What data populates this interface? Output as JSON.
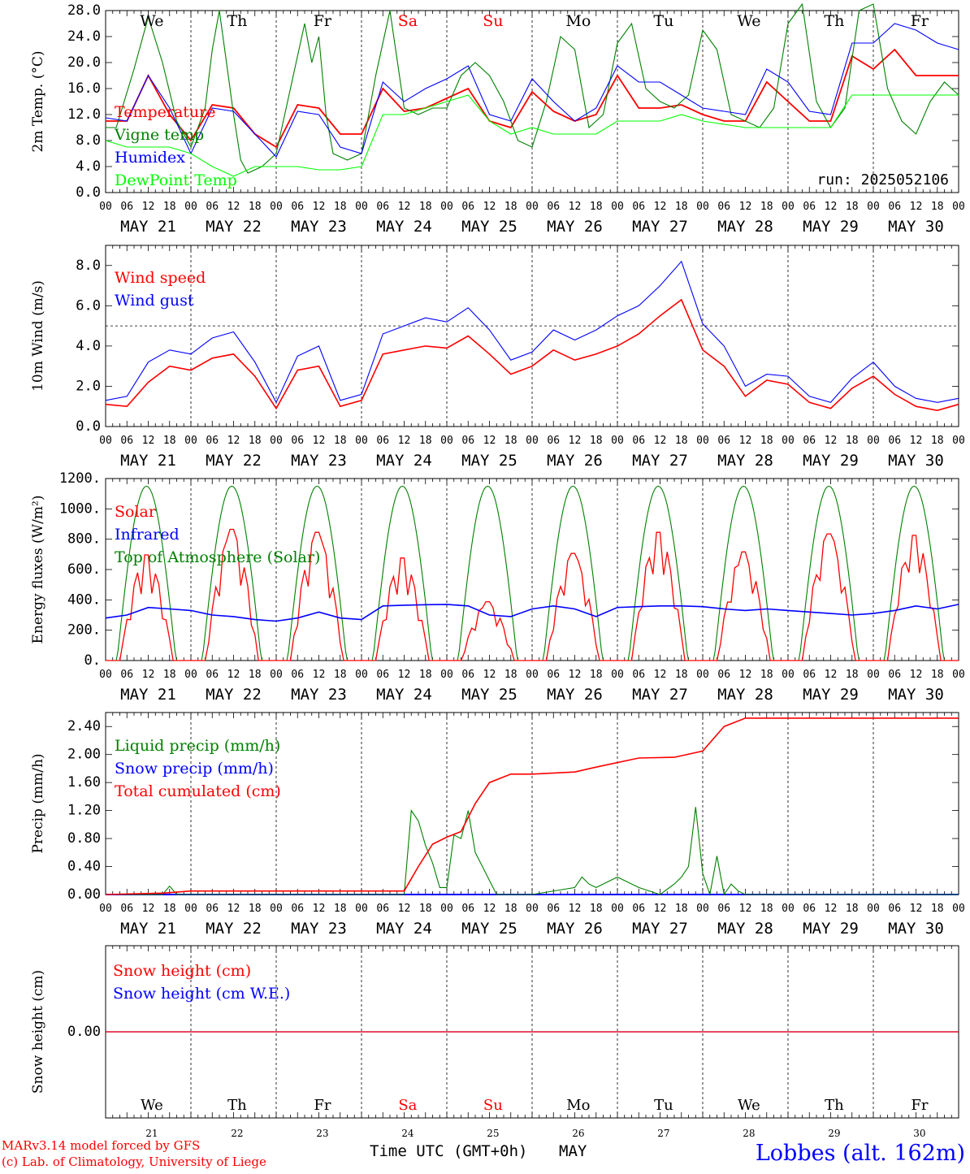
{
  "meteogram": {
    "day_labels": [
      "We",
      "Th",
      "Fr",
      "Sa",
      "Su",
      "Mo",
      "Tu",
      "We",
      "Th",
      "Fr"
    ],
    "weekend_days": [
      "Sa",
      "Su"
    ],
    "date_labels": [
      "MAY 21",
      "MAY 22",
      "MAY 23",
      "MAY 24",
      "MAY 25",
      "MAY 26",
      "MAY 27",
      "MAY 28",
      "MAY 29",
      "MAY 30"
    ],
    "hour_ticks": [
      "00",
      "06",
      "12",
      "18"
    ],
    "bottom_dates": [
      "21",
      "22",
      "23",
      "24",
      "25",
      "26",
      "27",
      "28",
      "29",
      "30"
    ],
    "xlabel": "Time UTC (GMT+0h)",
    "month": "MAY",
    "credit_line1": "MARv3.14 model forced by GFS",
    "credit_line2": "(c) Lab. of Climatology, University of Liege",
    "station": "Lobbes (alt. 162m)",
    "run": "run: 2025052106",
    "colors": {
      "red": "#ff0000",
      "green": "#008000",
      "blue": "#0000ff",
      "lime": "#00ff00",
      "station": "#0000ff"
    }
  },
  "chart_data": [
    {
      "type": "line",
      "ylabel": "2m Temp. (°C)",
      "ylim": [
        0,
        28
      ],
      "yticks": [
        "0.0",
        "4.0",
        "8.0",
        "12.0",
        "16.0",
        "20.0",
        "24.0",
        "28.0"
      ],
      "x_unit": "hours since 2025-05-21 00 UTC",
      "series": [
        {
          "name": "Temperature",
          "color": "red",
          "x": [
            0,
            6,
            12,
            18,
            24,
            30,
            36,
            42,
            48,
            54,
            60,
            66,
            72,
            78,
            84,
            90,
            96,
            102,
            108,
            114,
            120,
            126,
            132,
            138,
            144,
            150,
            156,
            162,
            168,
            174,
            180,
            186,
            192,
            198,
            204,
            210,
            216,
            222,
            228,
            234,
            240
          ],
          "values": [
            11,
            11,
            18,
            12,
            8,
            13.5,
            13,
            9,
            7,
            13.5,
            13,
            9,
            9,
            16,
            12.5,
            13,
            14.5,
            16,
            11,
            10,
            15.5,
            12.5,
            11,
            12,
            18,
            13,
            13,
            13.5,
            12,
            11,
            11,
            17,
            14,
            11,
            11,
            21,
            19,
            22,
            18,
            18,
            18
          ]
        },
        {
          "name": "Vigne temp",
          "color": "green",
          "x": [
            0,
            3,
            8,
            12,
            16,
            20,
            24,
            28,
            30,
            32,
            34,
            36,
            38,
            40,
            44,
            48,
            52,
            56,
            58,
            60,
            62,
            64,
            68,
            72,
            76,
            80,
            84,
            88,
            92,
            96,
            100,
            104,
            108,
            112,
            116,
            120,
            124,
            128,
            132,
            136,
            140,
            144,
            148,
            152,
            156,
            160,
            164,
            168,
            172,
            176,
            180,
            184,
            188,
            192,
            196,
            200,
            204,
            208,
            212,
            216,
            220,
            224,
            228,
            232,
            236,
            240
          ],
          "values": [
            10,
            10,
            19,
            27,
            20,
            11,
            7,
            13,
            22,
            28,
            20,
            12,
            5,
            3,
            4,
            6,
            16,
            26,
            20,
            24,
            12,
            6,
            5,
            6,
            18,
            28,
            13,
            12,
            13,
            13,
            18,
            20,
            18,
            14,
            8,
            7,
            14,
            24,
            22,
            10,
            12,
            23,
            26,
            16,
            14,
            13,
            15,
            25,
            22,
            12,
            11,
            10,
            13,
            26,
            29,
            14,
            10,
            13,
            28,
            29,
            16,
            11,
            9,
            14,
            17,
            15
          ]
        },
        {
          "name": "Humidex",
          "color": "blue",
          "x": [
            0,
            6,
            12,
            18,
            24,
            30,
            36,
            42,
            48,
            54,
            60,
            66,
            72,
            78,
            84,
            90,
            96,
            102,
            108,
            114,
            120,
            126,
            132,
            138,
            144,
            150,
            156,
            162,
            168,
            174,
            180,
            186,
            192,
            198,
            204,
            210,
            216,
            222,
            228,
            234,
            240
          ],
          "values": [
            11.5,
            11,
            18,
            13,
            6,
            13,
            12.5,
            9,
            5.5,
            12.5,
            12,
            7,
            6,
            17,
            14,
            16,
            17.5,
            19.5,
            12,
            11,
            17.5,
            14,
            11,
            13,
            19.5,
            17,
            17,
            15,
            13,
            12.5,
            12,
            19,
            17,
            12.5,
            12,
            23,
            23,
            26,
            25,
            23,
            22
          ]
        },
        {
          "name": "DewPoint Temp",
          "color": "lime",
          "x": [
            0,
            6,
            12,
            18,
            24,
            30,
            36,
            42,
            48,
            54,
            60,
            66,
            72,
            78,
            84,
            90,
            96,
            102,
            108,
            114,
            120,
            126,
            132,
            138,
            144,
            150,
            156,
            162,
            168,
            174,
            180,
            186,
            192,
            198,
            204,
            210,
            216,
            222,
            228,
            234,
            240
          ],
          "values": [
            8,
            7,
            7,
            7,
            6,
            4,
            2.5,
            4,
            4,
            4,
            3.5,
            3.5,
            4,
            12,
            12,
            13,
            14,
            15,
            11,
            9,
            10,
            9,
            9,
            9,
            11,
            11,
            11,
            12,
            11,
            10.5,
            10,
            10,
            10,
            10,
            10,
            15,
            15,
            15,
            15,
            15,
            15
          ]
        }
      ]
    },
    {
      "type": "line",
      "ylabel": "10m Wind (m/s)",
      "ylim": [
        0,
        9
      ],
      "yticks": [
        "0.0",
        "2.0",
        "4.0",
        "6.0",
        "8.0"
      ],
      "reference_line": 5,
      "series": [
        {
          "name": "Wind speed",
          "color": "red",
          "x": [
            0,
            6,
            12,
            18,
            24,
            30,
            36,
            42,
            48,
            54,
            60,
            66,
            72,
            78,
            84,
            90,
            96,
            102,
            108,
            114,
            120,
            126,
            132,
            138,
            144,
            150,
            156,
            162,
            168,
            174,
            180,
            186,
            192,
            198,
            204,
            210,
            216,
            222,
            228,
            234,
            240
          ],
          "values": [
            1.1,
            1,
            2.2,
            3,
            2.8,
            3.4,
            3.6,
            2.5,
            0.9,
            2.8,
            3,
            1,
            1.3,
            3.6,
            3.8,
            4,
            3.9,
            4.5,
            3.6,
            2.6,
            3,
            3.8,
            3.3,
            3.6,
            4,
            4.6,
            5.5,
            6.3,
            3.8,
            3,
            1.5,
            2.3,
            2.1,
            1.2,
            0.9,
            1.9,
            2.5,
            1.6,
            1,
            0.8,
            1.1
          ]
        },
        {
          "name": "Wind gust",
          "color": "blue",
          "x": [
            0,
            6,
            12,
            18,
            24,
            30,
            36,
            42,
            48,
            54,
            60,
            66,
            72,
            78,
            84,
            90,
            96,
            102,
            108,
            114,
            120,
            126,
            132,
            138,
            144,
            150,
            156,
            162,
            168,
            174,
            180,
            186,
            192,
            198,
            204,
            210,
            216,
            222,
            228,
            234,
            240
          ],
          "values": [
            1.3,
            1.5,
            3.2,
            3.8,
            3.6,
            4.4,
            4.7,
            3.2,
            1.2,
            3.5,
            4,
            1.3,
            1.6,
            4.6,
            5,
            5.4,
            5.2,
            5.9,
            4.8,
            3.3,
            3.7,
            4.8,
            4.3,
            4.8,
            5.5,
            6,
            7,
            8.2,
            5.1,
            4,
            2,
            2.6,
            2.5,
            1.5,
            1.2,
            2.4,
            3.2,
            2,
            1.4,
            1.2,
            1.4
          ]
        }
      ]
    },
    {
      "type": "line",
      "ylabel": "Energy fluxes (W/m²)",
      "ylim": [
        0,
        1200
      ],
      "yticks": [
        "0.",
        "200.",
        "400.",
        "600.",
        "800.",
        "1000.",
        "1200."
      ],
      "series": [
        {
          "name": "Solar",
          "color": "red",
          "peaks": [
            700,
            870,
            850,
            680,
            390,
            710,
            850,
            720,
            840,
            830
          ]
        },
        {
          "name": "Infrared",
          "color": "blue",
          "x": [
            0,
            6,
            12,
            18,
            24,
            30,
            36,
            42,
            48,
            54,
            60,
            66,
            72,
            78,
            84,
            90,
            96,
            102,
            108,
            114,
            120,
            126,
            132,
            138,
            144,
            150,
            156,
            162,
            168,
            174,
            180,
            186,
            192,
            198,
            204,
            210,
            216,
            222,
            228,
            234,
            240
          ],
          "values": [
            280,
            300,
            350,
            340,
            330,
            300,
            290,
            270,
            260,
            280,
            320,
            280,
            270,
            360,
            365,
            368,
            370,
            360,
            300,
            290,
            340,
            360,
            340,
            290,
            350,
            355,
            360,
            360,
            355,
            340,
            330,
            340,
            330,
            320,
            310,
            300,
            310,
            330,
            360,
            340,
            370
          ]
        },
        {
          "name": "Top of Atmosphere (Solar)",
          "color": "green",
          "peak": 1150
        }
      ]
    },
    {
      "type": "line",
      "ylabel": "Precip (mm/h)",
      "ylim": [
        0,
        2.6
      ],
      "yticks": [
        "0.00",
        "0.40",
        "0.80",
        "1.20",
        "1.60",
        "2.00",
        "2.40"
      ],
      "series": [
        {
          "name": "Liquid precip (mm/h)",
          "color": "green",
          "x": [
            0,
            16,
            18,
            20,
            22,
            24,
            84,
            86,
            88,
            90,
            92,
            94,
            96,
            98,
            100,
            102,
            104,
            106,
            108,
            110,
            112,
            114,
            120,
            132,
            134,
            136,
            138,
            144,
            150,
            156,
            160,
            162,
            164,
            166,
            168,
            170,
            172,
            174,
            176,
            178,
            180,
            240
          ],
          "values": [
            0,
            0,
            0.12,
            0,
            0,
            0,
            0,
            1.2,
            1.05,
            0.7,
            0.45,
            0.1,
            0.1,
            0.85,
            0.8,
            1.2,
            0.6,
            0.4,
            0.2,
            0,
            0,
            0,
            0,
            0.1,
            0.25,
            0.15,
            0.1,
            0.25,
            0.1,
            0,
            0.15,
            0.25,
            0.4,
            1.25,
            0.3,
            0,
            0.55,
            0,
            0.15,
            0.05,
            0,
            0
          ]
        },
        {
          "name": "Snow precip (mm/h)",
          "color": "blue",
          "x": [
            0,
            240
          ],
          "values": [
            0,
            0
          ]
        },
        {
          "name": "Total cumulated (cm)",
          "color": "red",
          "x": [
            0,
            16,
            24,
            84,
            88,
            92,
            96,
            100,
            104,
            108,
            114,
            120,
            132,
            138,
            150,
            160,
            168,
            174,
            180,
            240
          ],
          "values": [
            0,
            0.02,
            0.05,
            0.05,
            0.4,
            0.72,
            0.82,
            0.9,
            1.3,
            1.6,
            1.72,
            1.72,
            1.75,
            1.82,
            1.95,
            1.96,
            2.05,
            2.4,
            2.52,
            2.52
          ]
        }
      ]
    },
    {
      "type": "line",
      "ylabel": "Snow height (cm)",
      "ylim": [
        -1,
        1
      ],
      "yticks": [
        "0.00"
      ],
      "series": [
        {
          "name": "Snow height (cm)",
          "color": "red",
          "x": [
            0,
            240
          ],
          "values": [
            0,
            0
          ]
        },
        {
          "name": "Snow height (cm W.E.)",
          "color": "blue",
          "x": [
            0,
            240
          ],
          "values": [
            0,
            0
          ]
        }
      ]
    }
  ]
}
